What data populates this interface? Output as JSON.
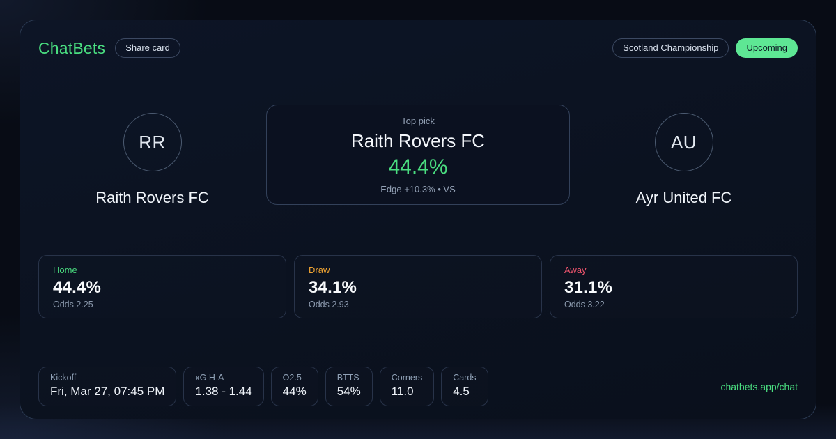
{
  "brand": {
    "logo": "ChatBets",
    "share_label": "Share card",
    "url": "chatbets.app/chat",
    "accent_green": "#4ade80"
  },
  "header": {
    "league": "Scotland Championship",
    "status": "Upcoming",
    "status_bg": "#5ee794"
  },
  "match": {
    "home_team": {
      "initials": "RR",
      "name": "Raith Rovers FC"
    },
    "away_team": {
      "initials": "AU",
      "name": "Ayr United FC"
    },
    "top_pick": {
      "label": "Top pick",
      "team": "Raith Rovers FC",
      "probability": "44.4%",
      "meta": "Edge +10.3% • VS"
    }
  },
  "probabilities": [
    {
      "label": "Home",
      "value": "44.4%",
      "odds": "Odds 2.25",
      "color": "#4ade80"
    },
    {
      "label": "Draw",
      "value": "34.1%",
      "odds": "Odds 2.93",
      "color": "#f0a432"
    },
    {
      "label": "Away",
      "value": "31.1%",
      "odds": "Odds 3.22",
      "color": "#f4566f"
    }
  ],
  "stats": [
    {
      "label": "Kickoff",
      "value": "Fri, Mar 27, 07:45 PM"
    },
    {
      "label": "xG H-A",
      "value": "1.38 - 1.44"
    },
    {
      "label": "O2.5",
      "value": "44%"
    },
    {
      "label": "BTTS",
      "value": "54%"
    },
    {
      "label": "Corners",
      "value": "11.0"
    },
    {
      "label": "Cards",
      "value": "4.5"
    }
  ]
}
